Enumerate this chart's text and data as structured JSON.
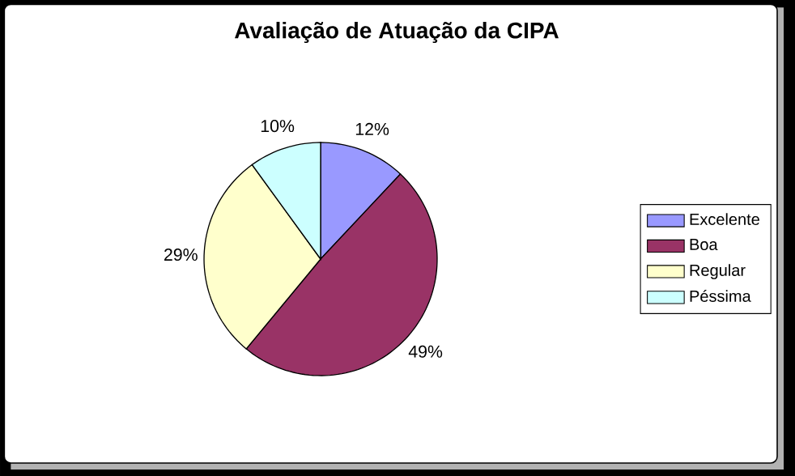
{
  "chart_data": {
    "type": "pie",
    "title": "Avaliação de Atuação da CIPA",
    "categories": [
      "Excelente",
      "Boa",
      "Regular",
      "Péssima"
    ],
    "values": [
      12,
      49,
      29,
      10
    ],
    "value_labels": [
      "12%",
      "49%",
      "29%",
      "10%"
    ],
    "colors": [
      "#9999ff",
      "#993366",
      "#ffffcc",
      "#ccffff"
    ],
    "legend": "right"
  }
}
